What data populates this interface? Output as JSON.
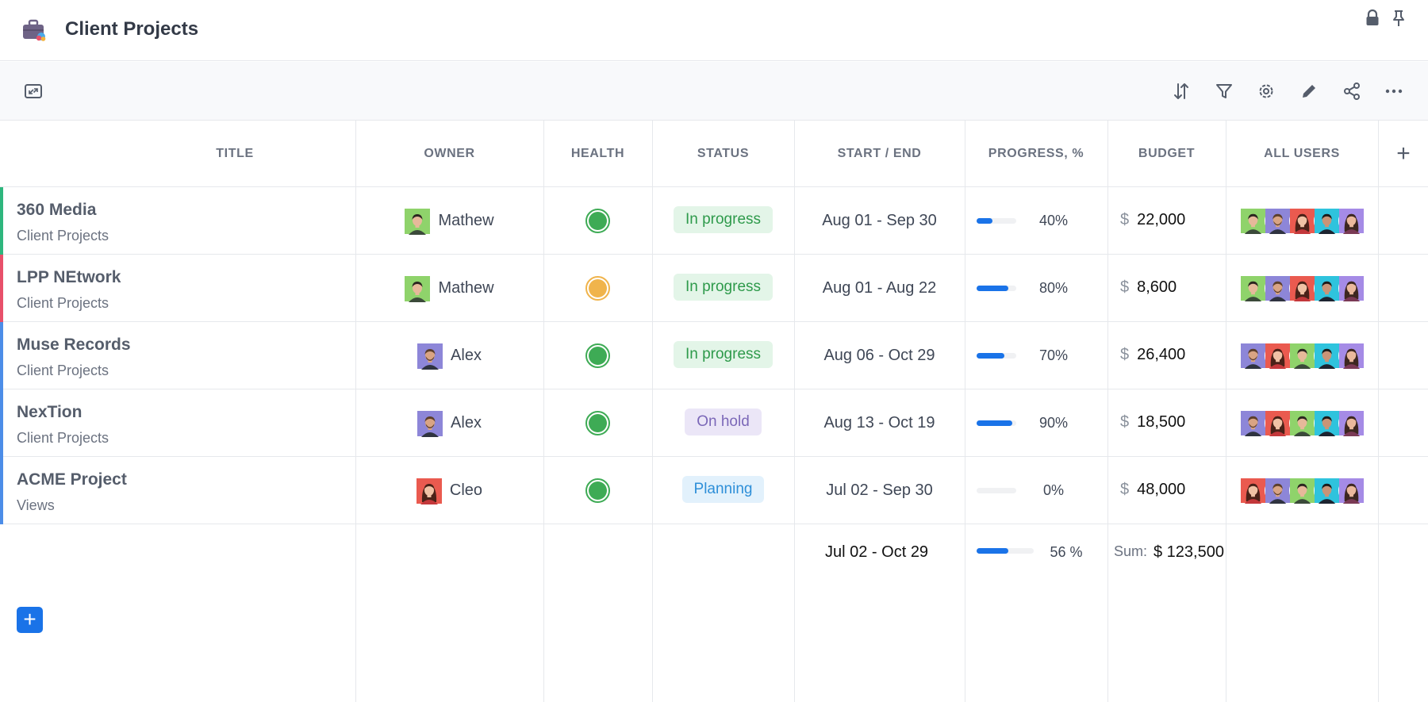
{
  "app": {
    "title": "Client Projects",
    "icon": "briefcase-icon"
  },
  "header_icons": [
    "lock-icon",
    "pin-icon"
  ],
  "toolbar": {
    "left": [
      "expand-icon"
    ],
    "right": [
      "sort-icon",
      "filter-icon",
      "settings-icon",
      "edit-icon",
      "share-icon",
      "more-icon"
    ]
  },
  "columns": {
    "title": "TITLE",
    "owner": "OWNER",
    "health": "HEALTH",
    "status": "STATUS",
    "dates": "START / END",
    "progress": "PROGRESS, %",
    "budget": "BUDGET",
    "users": "ALL USERS",
    "add": "+"
  },
  "colors": {
    "accent": "#1a73e8",
    "health_green": "#3eab55",
    "health_yellow": "#f0b44c",
    "status_in_progress_bg": "#e3f5e8",
    "status_in_progress_fg": "#2e9a4b",
    "status_on_hold_bg": "#ebe6f7",
    "status_on_hold_fg": "#7b68b8",
    "status_planning_bg": "#e2f1fc",
    "status_planning_fg": "#2e8fd8"
  },
  "rows": [
    {
      "title": "360 Media",
      "subtitle": "Client Projects",
      "accent": "#2eb67d",
      "owner": {
        "name": "Mathew",
        "avatar": "mathew"
      },
      "health": "green",
      "status": "In progress",
      "status_type": "in_progress",
      "dates": "Aug 01 - Sep 30",
      "progress_value": 40,
      "progress": "40%",
      "currency": "$",
      "budget": "22,000",
      "users": [
        "mathew",
        "alex",
        "cleo",
        "sam",
        "lena"
      ]
    },
    {
      "title": "LPP NEtwork",
      "subtitle": "Client Projects",
      "accent": "#e8506a",
      "owner": {
        "name": "Mathew",
        "avatar": "mathew"
      },
      "health": "yellow",
      "status": "In progress",
      "status_type": "in_progress",
      "dates": "Aug 01 - Aug 22",
      "progress_value": 80,
      "progress": "80%",
      "currency": "$",
      "budget": "8,600",
      "users": [
        "mathew",
        "alex",
        "cleo",
        "sam",
        "lena"
      ]
    },
    {
      "title": "Muse Records",
      "subtitle": "Client Projects",
      "accent": "#4c8de8",
      "owner": {
        "name": "Alex",
        "avatar": "alex"
      },
      "health": "green",
      "status": "In progress",
      "status_type": "in_progress",
      "dates": "Aug 06 - Oct 29",
      "progress_value": 70,
      "progress": "70%",
      "currency": "$",
      "budget": "26,400",
      "users": [
        "alex",
        "cleo",
        "mathew",
        "sam",
        "lena"
      ]
    },
    {
      "title": "NexTion",
      "subtitle": "Client Projects",
      "accent": "#4c8de8",
      "owner": {
        "name": "Alex",
        "avatar": "alex"
      },
      "health": "green",
      "status": "On hold",
      "status_type": "on_hold",
      "dates": "Aug 13 - Oct 19",
      "progress_value": 90,
      "progress": "90%",
      "currency": "$",
      "budget": "18,500",
      "users": [
        "alex",
        "cleo",
        "mathew",
        "sam",
        "lena"
      ]
    },
    {
      "title": "ACME Project",
      "subtitle": "Views",
      "accent": "#4c8de8",
      "owner": {
        "name": "Cleo",
        "avatar": "cleo"
      },
      "health": "green",
      "status": "Planning",
      "status_type": "planning",
      "dates": "Jul 02 - Sep 30",
      "progress_value": 0,
      "progress": "0%",
      "currency": "$",
      "budget": "48,000",
      "users": [
        "cleo",
        "alex",
        "mathew",
        "sam",
        "lena"
      ]
    }
  ],
  "summary": {
    "dates": "Jul 02 - Oct 29",
    "progress_value": 56,
    "progress": "56 %",
    "sum_label": "Sum:",
    "sum_value": "$ 123,500"
  },
  "add_row_label": "+"
}
